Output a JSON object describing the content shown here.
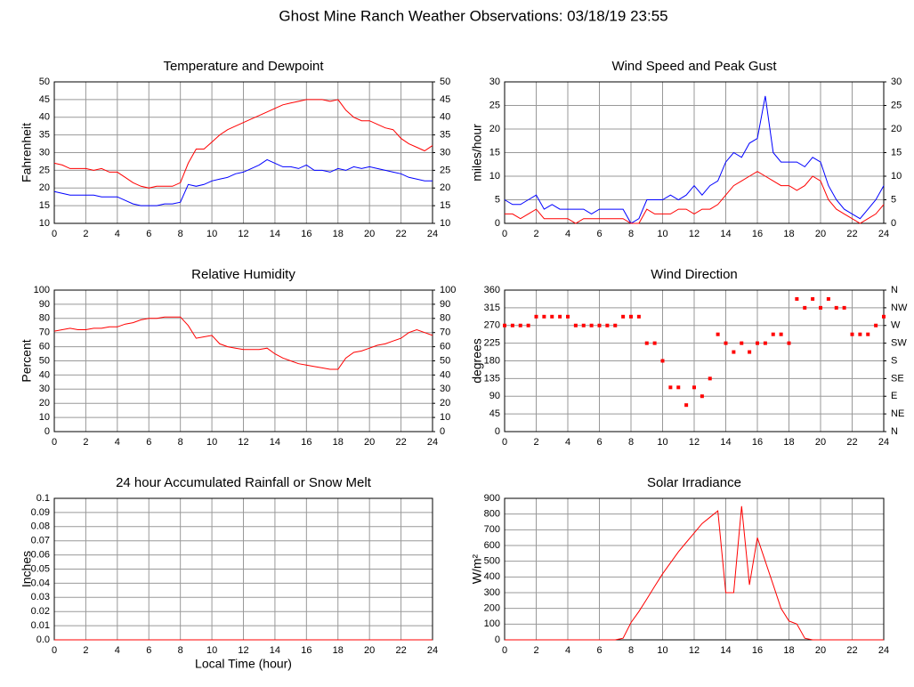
{
  "title": "Ghost Mine Ranch Weather Observations: 03/18/19 23:55",
  "chart_data": [
    {
      "type": "line",
      "title": "Temperature and Dewpoint",
      "ylabel": "Fahrenheit",
      "x": [
        0,
        0.5,
        1,
        1.5,
        2,
        2.5,
        3,
        3.5,
        4,
        4.5,
        5,
        5.5,
        6,
        6.5,
        7,
        7.5,
        8,
        8.5,
        9,
        9.5,
        10,
        10.5,
        11,
        11.5,
        12,
        12.5,
        13,
        13.5,
        14,
        14.5,
        15,
        15.5,
        16,
        16.5,
        17,
        17.5,
        18,
        18.5,
        19,
        19.5,
        20,
        20.5,
        21,
        21.5,
        22,
        22.5,
        23,
        23.5,
        24
      ],
      "series": [
        {
          "color": "#ff0000",
          "values": [
            27,
            26.5,
            25.5,
            25.5,
            25.5,
            25,
            25.5,
            24.5,
            24.5,
            23,
            21.5,
            20.5,
            20,
            20.5,
            20.5,
            20.5,
            21.5,
            27,
            31,
            31,
            33,
            35,
            36.5,
            37.5,
            38.5,
            39.5,
            40.5,
            41.5,
            42.5,
            43.5,
            44,
            44.5,
            45,
            45,
            45,
            44.5,
            45,
            42,
            40,
            39,
            39,
            38,
            37,
            36.5,
            34,
            32.5,
            31.5,
            30.5,
            32
          ]
        },
        {
          "color": "#0000ff",
          "values": [
            19,
            18.5,
            18,
            18,
            18,
            18,
            17.5,
            17.5,
            17.5,
            16.5,
            15.5,
            15,
            15,
            15,
            15.5,
            15.5,
            16,
            21,
            20.5,
            21,
            22,
            22.5,
            23,
            24,
            24.5,
            25.5,
            26.5,
            28,
            27,
            26,
            26,
            25.5,
            26.5,
            25,
            25,
            24.5,
            25.5,
            25,
            26,
            25.5,
            26,
            25.5,
            25,
            24.5,
            24,
            23,
            22.5,
            22,
            22
          ]
        }
      ],
      "xlim": [
        0,
        24
      ],
      "xticks": [
        0,
        2,
        4,
        6,
        8,
        10,
        12,
        14,
        16,
        18,
        20,
        22,
        24
      ],
      "ylim": [
        10,
        50
      ],
      "yticks": [
        10,
        15,
        20,
        25,
        30,
        35,
        40,
        45,
        50
      ],
      "y2lim": [
        10,
        50
      ],
      "y2ticks": [
        10,
        15,
        20,
        25,
        30,
        35,
        40,
        45,
        50
      ],
      "grid": true
    },
    {
      "type": "line",
      "title": "Wind Speed and Peak Gust",
      "ylabel": "miles/hour",
      "x": [
        0,
        0.5,
        1,
        1.5,
        2,
        2.5,
        3,
        3.5,
        4,
        4.5,
        5,
        5.5,
        6,
        6.5,
        7,
        7.5,
        8,
        8.5,
        9,
        9.5,
        10,
        10.5,
        11,
        11.5,
        12,
        12.5,
        13,
        13.5,
        14,
        14.5,
        15,
        15.5,
        16,
        16.5,
        17,
        17.5,
        18,
        18.5,
        19,
        19.5,
        20,
        20.5,
        21,
        21.5,
        22,
        22.5,
        23,
        23.5,
        24
      ],
      "series": [
        {
          "color": "#0000ff",
          "values": [
            5,
            4,
            4,
            5,
            6,
            3,
            4,
            3,
            3,
            3,
            3,
            2,
            3,
            3,
            3,
            3,
            0,
            1,
            5,
            5,
            5,
            6,
            5,
            6,
            8,
            6,
            8,
            9,
            13,
            15,
            14,
            17,
            18,
            27,
            15,
            13,
            13,
            13,
            12,
            14,
            13,
            8,
            5,
            3,
            2,
            1,
            3,
            5,
            8
          ]
        },
        {
          "color": "#ff0000",
          "values": [
            2,
            2,
            1,
            2,
            3,
            1,
            1,
            1,
            1,
            0,
            1,
            1,
            1,
            1,
            1,
            1,
            0,
            0,
            3,
            2,
            2,
            2,
            3,
            3,
            2,
            3,
            3,
            4,
            6,
            8,
            9,
            10,
            11,
            10,
            9,
            8,
            8,
            7,
            8,
            10,
            9,
            5,
            3,
            2,
            1,
            0,
            1,
            2,
            4
          ]
        }
      ],
      "xlim": [
        0,
        24
      ],
      "xticks": [
        0,
        2,
        4,
        6,
        8,
        10,
        12,
        14,
        16,
        18,
        20,
        22,
        24
      ],
      "ylim": [
        0,
        30
      ],
      "yticks": [
        0,
        5,
        10,
        15,
        20,
        25,
        30
      ],
      "y2lim": [
        0,
        30
      ],
      "y2ticks": [
        0,
        5,
        10,
        15,
        20,
        25,
        30
      ],
      "grid": true
    },
    {
      "type": "line",
      "title": "Relative Humidity",
      "ylabel": "Percent",
      "x": [
        0,
        0.5,
        1,
        1.5,
        2,
        2.5,
        3,
        3.5,
        4,
        4.5,
        5,
        5.5,
        6,
        6.5,
        7,
        7.5,
        8,
        8.5,
        9,
        9.5,
        10,
        10.5,
        11,
        11.5,
        12,
        12.5,
        13,
        13.5,
        14,
        14.5,
        15,
        15.5,
        16,
        16.5,
        17,
        17.5,
        18,
        18.5,
        19,
        19.5,
        20,
        20.5,
        21,
        21.5,
        22,
        22.5,
        23,
        23.5,
        24
      ],
      "series": [
        {
          "color": "#ff0000",
          "values": [
            71,
            72,
            73,
            72,
            72,
            73,
            73,
            74,
            74,
            76,
            77,
            79,
            80,
            80,
            81,
            81,
            81,
            75,
            66,
            67,
            68,
            62,
            60,
            59,
            58,
            58,
            58,
            59,
            55,
            52,
            50,
            48,
            47,
            46,
            45,
            44,
            44,
            52,
            56,
            57,
            59,
            61,
            62,
            64,
            66,
            70,
            72,
            70,
            68
          ]
        }
      ],
      "xlim": [
        0,
        24
      ],
      "xticks": [
        0,
        2,
        4,
        6,
        8,
        10,
        12,
        14,
        16,
        18,
        20,
        22,
        24
      ],
      "ylim": [
        0,
        100
      ],
      "yticks": [
        0,
        10,
        20,
        30,
        40,
        50,
        60,
        70,
        80,
        90,
        100
      ],
      "y2lim": [
        0,
        100
      ],
      "y2ticks": [
        0,
        10,
        20,
        30,
        40,
        50,
        60,
        70,
        80,
        90,
        100
      ],
      "grid": true
    },
    {
      "type": "scatter",
      "title": "Wind Direction",
      "ylabel": "degrees",
      "x": [
        0,
        0.5,
        1,
        1.5,
        2,
        2.5,
        3,
        3.5,
        4,
        4.5,
        5,
        5.5,
        6,
        6.5,
        7,
        7.5,
        8,
        8.5,
        9,
        9.5,
        10,
        10.5,
        11,
        11.5,
        12,
        12.5,
        13,
        13.5,
        14,
        14.5,
        15,
        15.5,
        16,
        16.5,
        17,
        17.5,
        18,
        18.5,
        19,
        19.5,
        20,
        20.5,
        21,
        21.5,
        22,
        22.5,
        23,
        23.5,
        24
      ],
      "series": [
        {
          "color": "#ff0000",
          "values": [
            270,
            270,
            270,
            270,
            292.5,
            292.5,
            292.5,
            292.5,
            292.5,
            270,
            270,
            270,
            270,
            270,
            270,
            292.5,
            292.5,
            292.5,
            225,
            225,
            180,
            112.5,
            112.5,
            67.5,
            112.5,
            90,
            135,
            247.5,
            225,
            202.5,
            225,
            202.5,
            225,
            225,
            247.5,
            247.5,
            225,
            337.5,
            315,
            337.5,
            315,
            337.5,
            315,
            315,
            247.5,
            247.5,
            247.5,
            270,
            292.5
          ]
        }
      ],
      "xlim": [
        0,
        24
      ],
      "xticks": [
        0,
        2,
        4,
        6,
        8,
        10,
        12,
        14,
        16,
        18,
        20,
        22,
        24
      ],
      "ylim": [
        0,
        360
      ],
      "yticks": [
        0,
        45,
        90,
        135,
        180,
        225,
        270,
        315,
        360
      ],
      "y2lim": [
        0,
        360
      ],
      "y2ticks": [
        {
          "value": 0,
          "label": "N"
        },
        {
          "value": 45,
          "label": "NE"
        },
        {
          "value": 90,
          "label": "E"
        },
        {
          "value": 135,
          "label": "SE"
        },
        {
          "value": 180,
          "label": "S"
        },
        {
          "value": 225,
          "label": "SW"
        },
        {
          "value": 270,
          "label": "W"
        },
        {
          "value": 315,
          "label": "NW"
        },
        {
          "value": 360,
          "label": "N"
        }
      ],
      "grid": true
    },
    {
      "type": "line",
      "title": "24 hour Accumulated Rainfall or Snow Melt",
      "ylabel": "Inches",
      "xlabel": "Local Time (hour)",
      "x": [
        0,
        24
      ],
      "series": [
        {
          "color": "#ff0000",
          "values": [
            0,
            0
          ]
        }
      ],
      "xlim": [
        0,
        24
      ],
      "xticks": [
        0,
        2,
        4,
        6,
        8,
        10,
        12,
        14,
        16,
        18,
        20,
        22,
        24
      ],
      "ylim": [
        0,
        0.1
      ],
      "yticks": [
        {
          "value": 0,
          "label": "0.0"
        },
        0.01,
        0.02,
        0.03,
        0.04,
        0.05,
        0.06,
        0.07,
        0.08,
        0.09,
        0.1
      ],
      "grid": true
    },
    {
      "type": "line",
      "title": "Solar Irradiance",
      "ylabel": "W/m²",
      "x": [
        0,
        0.5,
        1,
        1.5,
        2,
        2.5,
        3,
        3.5,
        4,
        4.5,
        5,
        5.5,
        6,
        6.5,
        7,
        7.5,
        8,
        8.5,
        9,
        9.5,
        10,
        10.5,
        11,
        11.5,
        12,
        12.5,
        13,
        13.5,
        14,
        14.5,
        15,
        15.5,
        16,
        16.5,
        17,
        17.5,
        18,
        18.5,
        19,
        19.5,
        20,
        20.5,
        21,
        21.5,
        22,
        22.5,
        23,
        23.5,
        24
      ],
      "series": [
        {
          "color": "#ff0000",
          "values": [
            0,
            0,
            0,
            0,
            0,
            0,
            0,
            0,
            0,
            0,
            0,
            0,
            0,
            0,
            0,
            10,
            110,
            180,
            260,
            340,
            420,
            490,
            560,
            620,
            680,
            740,
            780,
            820,
            300,
            300,
            850,
            350,
            650,
            500,
            350,
            200,
            120,
            100,
            10,
            0,
            0,
            0,
            0,
            0,
            0,
            0,
            0,
            0,
            0
          ]
        }
      ],
      "xlim": [
        0,
        24
      ],
      "xticks": [
        0,
        2,
        4,
        6,
        8,
        10,
        12,
        14,
        16,
        18,
        20,
        22,
        24
      ],
      "ylim": [
        0,
        900
      ],
      "yticks": [
        0,
        100,
        200,
        300,
        400,
        500,
        600,
        700,
        800,
        900
      ],
      "grid": true
    }
  ]
}
